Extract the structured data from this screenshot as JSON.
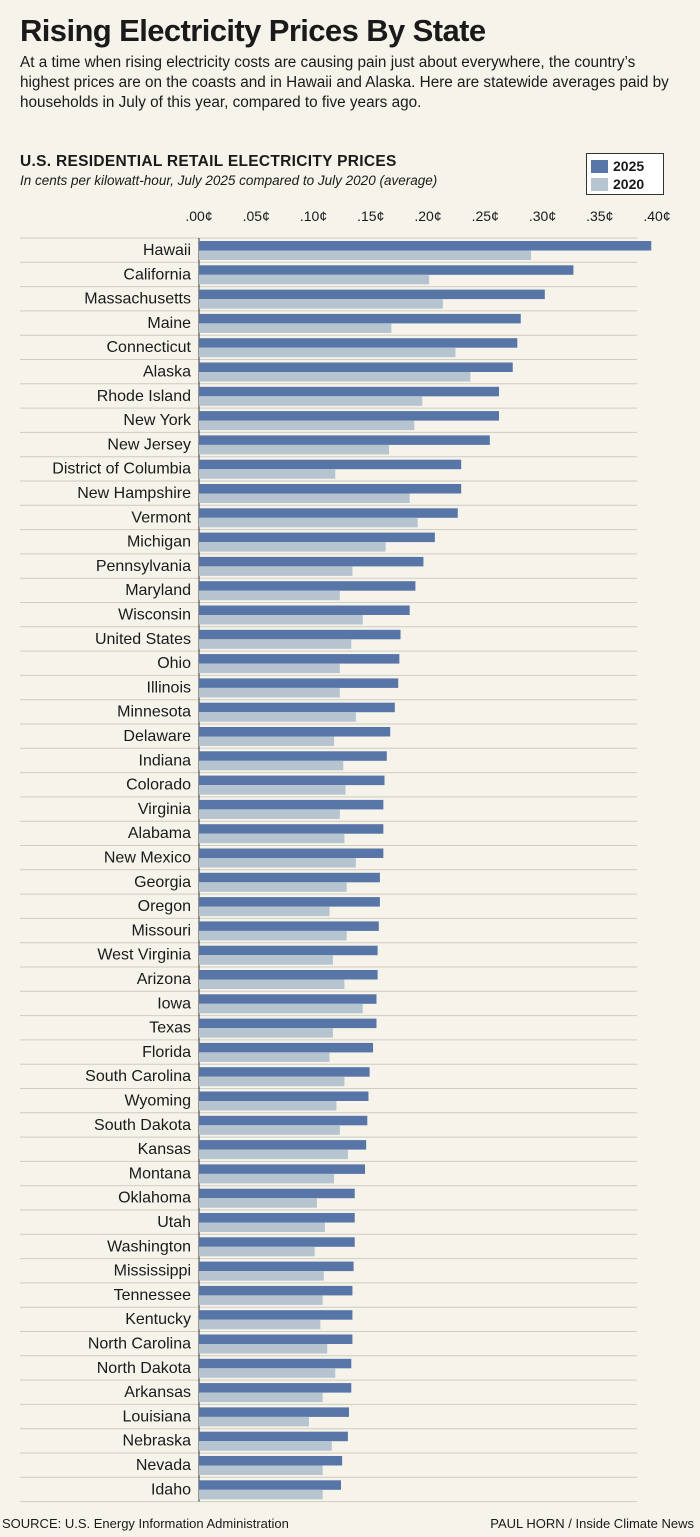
{
  "header": {
    "title": "Rising Electricity Prices By State",
    "intro": "At a time when rising electricity costs are causing pain just about everywhere, the country’s highest prices are on the coasts and in Hawaii and Alaska. Here are statewide averages paid by households in July of this year, compared to five years ago."
  },
  "colors": {
    "series_2025": "#5775a6",
    "series_2020": "#b6c4d0",
    "background": "#f5f3ea"
  },
  "chart_data": {
    "type": "bar",
    "orientation": "horizontal",
    "title": "U.S. RESIDENTIAL RETAIL ELECTRICITY PRICES",
    "subtitle": "In cents per kilowatt-hour, July 2025 compared to July 2020 (average)",
    "xlim": [
      0,
      0.4
    ],
    "ticks": [
      ".00¢",
      ".05¢",
      ".10¢",
      ".15¢",
      ".20¢",
      ".25¢",
      ".30¢",
      ".35¢",
      ".40¢"
    ],
    "legend": {
      "position": "top-right",
      "items": [
        "2025",
        "2020"
      ]
    },
    "categories": [
      "Hawaii",
      "California",
      "Massachusetts",
      "Maine",
      "Connecticut",
      "Alaska",
      "Rhode Island",
      "New York",
      "New Jersey",
      "District of Columbia",
      "New Hampshire",
      "Vermont",
      "Michigan",
      "Pennsylvania",
      "Maryland",
      "Wisconsin",
      "United States",
      "Ohio",
      "Illinois",
      "Minnesota",
      "Delaware",
      "Indiana",
      "Colorado",
      "Virginia",
      "Alabama",
      "New Mexico",
      "Georgia",
      "Oregon",
      "Missouri",
      "West Virginia",
      "Arizona",
      "Iowa",
      "Texas",
      "Florida",
      "South Carolina",
      "Wyoming",
      "South Dakota",
      "Kansas",
      "Montana",
      "Oklahoma",
      "Utah",
      "Washington",
      "Mississippi",
      "Tennessee",
      "Kentucky",
      "North Carolina",
      "North Dakota",
      "Arkansas",
      "Louisiana",
      "Nebraska",
      "Nevada",
      "Idaho"
    ],
    "series": [
      {
        "name": "2025",
        "values": [
          0.395,
          0.327,
          0.302,
          0.281,
          0.278,
          0.274,
          0.262,
          0.262,
          0.254,
          0.229,
          0.229,
          0.226,
          0.206,
          0.196,
          0.189,
          0.184,
          0.176,
          0.175,
          0.174,
          0.171,
          0.167,
          0.164,
          0.162,
          0.161,
          0.161,
          0.161,
          0.158,
          0.158,
          0.157,
          0.156,
          0.156,
          0.155,
          0.155,
          0.152,
          0.149,
          0.148,
          0.147,
          0.146,
          0.145,
          0.136,
          0.136,
          0.136,
          0.135,
          0.134,
          0.134,
          0.134,
          0.133,
          0.133,
          0.131,
          0.13,
          0.125,
          0.124
        ]
      },
      {
        "name": "2020",
        "values": [
          0.29,
          0.201,
          0.213,
          0.168,
          0.224,
          0.237,
          0.195,
          0.188,
          0.166,
          0.119,
          0.184,
          0.191,
          0.163,
          0.134,
          0.123,
          0.143,
          0.133,
          0.123,
          0.123,
          0.137,
          0.118,
          0.126,
          0.128,
          0.123,
          0.127,
          0.137,
          0.129,
          0.114,
          0.129,
          0.117,
          0.127,
          0.143,
          0.117,
          0.114,
          0.127,
          0.12,
          0.123,
          0.13,
          0.118,
          0.103,
          0.11,
          0.101,
          0.109,
          0.108,
          0.106,
          0.112,
          0.119,
          0.108,
          0.096,
          0.116,
          0.108,
          0.108
        ]
      }
    ]
  },
  "footer": {
    "source": "SOURCE: U.S. Energy Information Administration",
    "credit": "PAUL HORN / Inside Climate News"
  }
}
